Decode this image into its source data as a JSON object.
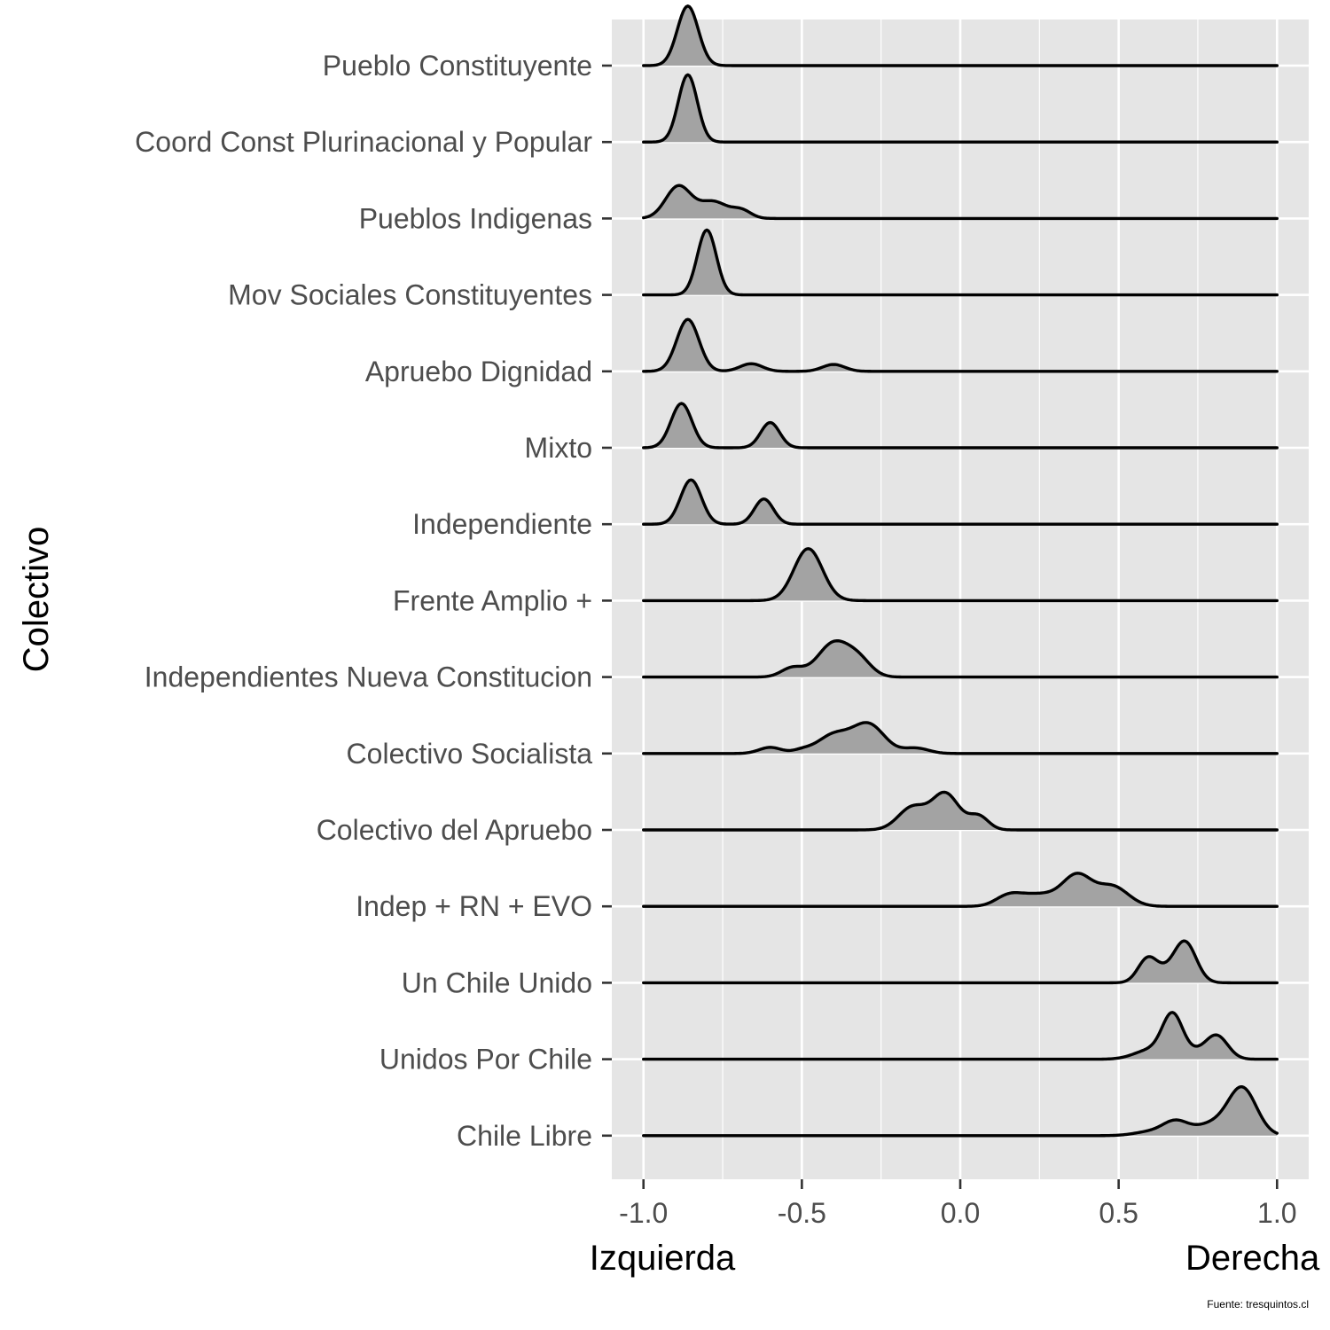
{
  "chart_data": {
    "type": "ridgeline",
    "ylabel": "Colectivo",
    "xlabel_left": "Izquierda",
    "xlabel_right": "Derecha",
    "caption": "Fuente: tresquintos.cl",
    "xlim": [
      -1.1,
      1.1
    ],
    "xticks": [
      -1.0,
      -0.5,
      0.0,
      0.5,
      1.0
    ],
    "xtick_labels": [
      "-1.0",
      "-0.5",
      "0.0",
      "0.5",
      "1.0"
    ],
    "grid": true,
    "colors": {
      "panel": "#e5e5e5",
      "grid": "#ffffff",
      "fill": "#a3a3a3",
      "line": "#000000"
    },
    "series": [
      {
        "name": "Chile Libre",
        "range": [
          -1.0,
          1.0
        ],
        "peaks": [
          [
            0.89,
            0.045,
            0.62
          ],
          [
            0.79,
            0.05,
            0.14
          ],
          [
            0.68,
            0.04,
            0.18
          ],
          [
            0.6,
            0.05,
            0.05
          ]
        ]
      },
      {
        "name": "Unidos Por Chile",
        "range": [
          -1.0,
          1.0
        ],
        "peaks": [
          [
            0.67,
            0.032,
            0.55
          ],
          [
            0.81,
            0.035,
            0.3
          ],
          [
            0.6,
            0.05,
            0.12
          ],
          [
            0.74,
            0.04,
            0.08
          ]
        ]
      },
      {
        "name": "Un Chile Unido",
        "range": [
          -1.0,
          1.0
        ],
        "peaks": [
          [
            0.71,
            0.035,
            0.52
          ],
          [
            0.59,
            0.03,
            0.28
          ],
          [
            0.64,
            0.04,
            0.12
          ]
        ]
      },
      {
        "name": "Indep + RN + EVO",
        "range": [
          -1.0,
          1.0
        ],
        "peaks": [
          [
            0.37,
            0.045,
            0.38
          ],
          [
            0.48,
            0.05,
            0.26
          ],
          [
            0.27,
            0.06,
            0.12
          ],
          [
            0.15,
            0.04,
            0.12
          ],
          [
            0.21,
            0.05,
            0.06
          ]
        ]
      },
      {
        "name": "Colectivo del Apruebo",
        "range": [
          -1.0,
          1.0
        ],
        "peaks": [
          [
            -0.05,
            0.04,
            0.42
          ],
          [
            -0.15,
            0.045,
            0.3
          ],
          [
            0.06,
            0.03,
            0.15
          ],
          [
            0.0,
            0.05,
            0.08
          ]
        ]
      },
      {
        "name": "Colectivo Socialista",
        "range": [
          -1.0,
          1.0
        ],
        "peaks": [
          [
            -0.29,
            0.05,
            0.38
          ],
          [
            -0.4,
            0.05,
            0.24
          ],
          [
            -0.6,
            0.035,
            0.08
          ],
          [
            -0.14,
            0.04,
            0.07
          ],
          [
            -0.5,
            0.03,
            0.04
          ]
        ]
      },
      {
        "name": "Independientes Nueva Constitucion",
        "range": [
          -1.0,
          1.0
        ],
        "peaks": [
          [
            -0.4,
            0.05,
            0.44
          ],
          [
            -0.32,
            0.04,
            0.2
          ],
          [
            -0.53,
            0.035,
            0.12
          ]
        ]
      },
      {
        "name": "Frente Amplio +",
        "range": [
          -1.0,
          1.0
        ],
        "peaks": [
          [
            -0.48,
            0.045,
            0.68
          ]
        ]
      },
      {
        "name": "Independiente",
        "range": [
          -1.0,
          1.0
        ],
        "peaks": [
          [
            -0.85,
            0.033,
            0.58
          ],
          [
            -0.62,
            0.03,
            0.33
          ]
        ]
      },
      {
        "name": "Mixto",
        "range": [
          -1.0,
          1.0
        ],
        "peaks": [
          [
            -0.88,
            0.033,
            0.58
          ],
          [
            -0.6,
            0.03,
            0.33
          ]
        ]
      },
      {
        "name": "Apruebo Dignidad",
        "range": [
          -1.0,
          1.0
        ],
        "peaks": [
          [
            -0.86,
            0.035,
            0.68
          ],
          [
            -0.66,
            0.035,
            0.1
          ],
          [
            -0.4,
            0.035,
            0.09
          ]
        ]
      },
      {
        "name": "Mov Sociales Constituyentes",
        "range": [
          -1.0,
          1.0
        ],
        "peaks": [
          [
            -0.8,
            0.03,
            0.85
          ]
        ]
      },
      {
        "name": "Pueblos Indigenas",
        "range": [
          -1.0,
          1.0
        ],
        "peaks": [
          [
            -0.89,
            0.04,
            0.42
          ],
          [
            -0.78,
            0.045,
            0.22
          ],
          [
            -0.69,
            0.03,
            0.1
          ]
        ]
      },
      {
        "name": "Coord Const Plurinacional y Popular",
        "range": [
          -1.0,
          1.0
        ],
        "peaks": [
          [
            -0.86,
            0.03,
            0.88
          ]
        ]
      },
      {
        "name": "Pueblo Constituyente",
        "range": [
          -1.0,
          1.0
        ],
        "peaks": [
          [
            -0.86,
            0.033,
            0.78
          ]
        ]
      }
    ]
  }
}
